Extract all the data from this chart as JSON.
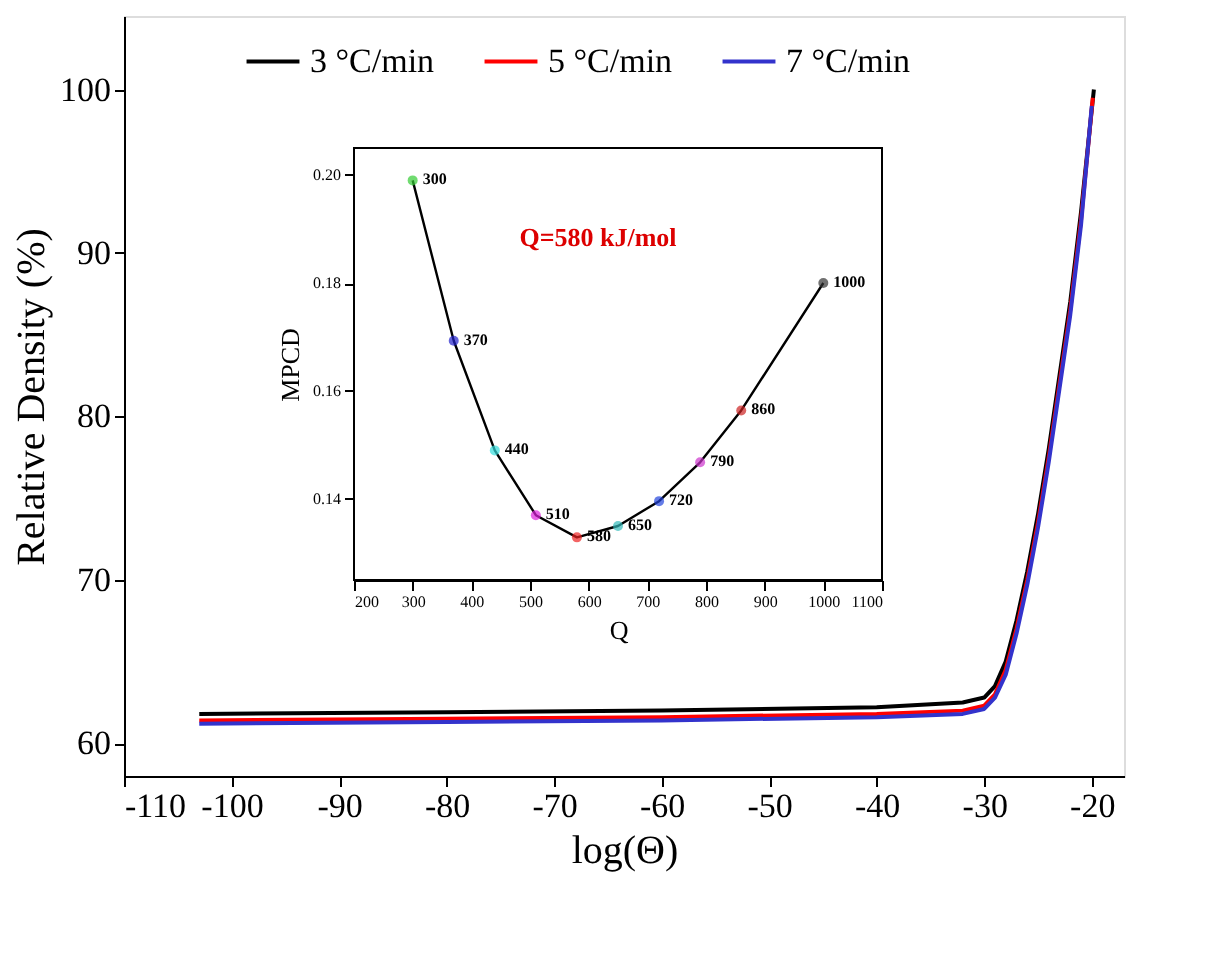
{
  "chart_data": [
    {
      "type": "line",
      "xlabel": "log(Θ)",
      "ylabel": "Relative Density (%)",
      "xlim": [
        -110,
        -17
      ],
      "ylim": [
        58,
        104.5
      ],
      "xticks": [
        -110,
        -100,
        -90,
        -80,
        -70,
        -60,
        -50,
        -40,
        -30,
        -20
      ],
      "yticks": [
        60,
        70,
        80,
        90,
        100
      ],
      "grid": false,
      "legend": "top",
      "series": [
        {
          "name": "3 °C/min",
          "color": "#000000",
          "x": [
            -103,
            -80,
            -60,
            -40,
            -32,
            -30,
            -29,
            -28,
            -27,
            -26,
            -25,
            -24,
            -23,
            -22,
            -21,
            -19.8
          ],
          "values": [
            61.8,
            61.9,
            62.0,
            62.2,
            62.5,
            62.8,
            63.5,
            65,
            67.5,
            70.5,
            74,
            78,
            82.5,
            87,
            92.5,
            100
          ]
        },
        {
          "name": "5 °C/min",
          "color": "#ff0000",
          "x": [
            -103,
            -80,
            -60,
            -40,
            -32,
            -30,
            -29,
            -28,
            -27,
            -26,
            -25,
            -24,
            -23,
            -22,
            -21,
            -19.9
          ],
          "values": [
            61.4,
            61.5,
            61.6,
            61.8,
            62.0,
            62.3,
            63.0,
            64.5,
            67,
            70,
            73.5,
            77.5,
            82,
            86.5,
            92,
            99.5
          ]
        },
        {
          "name": "7 °C/min",
          "color": "#3333cc",
          "x": [
            -103,
            -80,
            -60,
            -40,
            -32,
            -30,
            -29,
            -28,
            -27,
            -26,
            -25,
            -24,
            -23,
            -22,
            -21,
            -20
          ],
          "values": [
            61.2,
            61.3,
            61.4,
            61.6,
            61.8,
            62.1,
            62.8,
            64.2,
            66.7,
            69.7,
            73.2,
            77.2,
            81.7,
            86.2,
            91.7,
            99
          ]
        }
      ]
    },
    {
      "type": "line",
      "xlabel": "Q",
      "ylabel": "MPCD",
      "xlim": [
        200,
        1100
      ],
      "ylim": [
        0.125,
        0.205
      ],
      "xticks": [
        200,
        300,
        400,
        500,
        600,
        700,
        800,
        900,
        1000,
        1100
      ],
      "yticks": [
        {
          "value": 0.14,
          "label": "0.14"
        },
        {
          "value": 0.16,
          "label": "0.16"
        },
        {
          "value": 0.18,
          "label": "0.18"
        },
        {
          "value": 0.2,
          "label": "0.20"
        }
      ],
      "grid": false,
      "marker": "circle",
      "series": [
        {
          "color": "#000000",
          "colors": [
            "#33cc33",
            "#2222cc",
            "#33dddd",
            "#dd22dd",
            "#ee2222",
            "#33bbbb",
            "#2244dd",
            "#cc33cc",
            "#cc2222",
            "#333333"
          ],
          "x": [
            300,
            370,
            440,
            510,
            580,
            650,
            720,
            790,
            860,
            1000
          ],
          "values": [
            0.199,
            0.1693,
            0.149,
            0.137,
            0.1329,
            0.135,
            0.1396,
            0.1468,
            0.1564,
            0.18
          ]
        }
      ],
      "annotations": [
        "Q=580 kJ/mol",
        {
          "text": "300",
          "x": 300,
          "y": 0.199
        },
        {
          "text": "370",
          "x": 370,
          "y": 0.1693
        },
        {
          "text": "440",
          "x": 440,
          "y": 0.149
        },
        {
          "text": "510",
          "x": 510,
          "y": 0.137
        },
        {
          "text": "580",
          "x": 580,
          "y": 0.1329
        },
        {
          "text": "650",
          "x": 650,
          "y": 0.135
        },
        {
          "text": "720",
          "x": 720,
          "y": 0.1396
        },
        {
          "text": "790",
          "x": 790,
          "y": 0.1468
        },
        {
          "text": "860",
          "x": 860,
          "y": 0.1564
        },
        {
          "text": "1000",
          "x": 1000,
          "y": 0.18
        }
      ]
    }
  ]
}
